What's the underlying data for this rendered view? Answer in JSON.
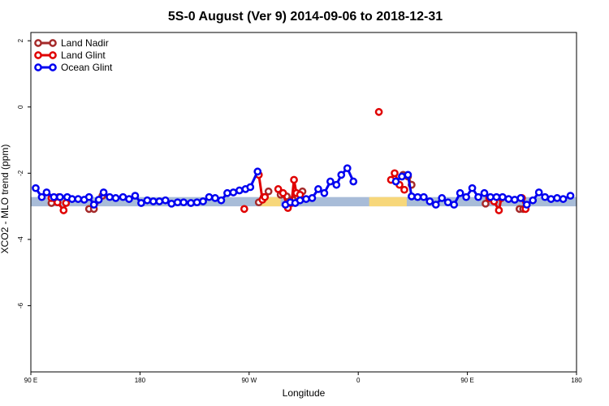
{
  "chart_data": {
    "type": "line",
    "title": "5S-0 August (Ver 9)   2014-09-06 to 2018-12-31",
    "xlabel": "Longitude",
    "ylabel": "XCO2 - MLO trend (ppm)",
    "x_ticks": [
      {
        "value": 90,
        "label": "90 E"
      },
      {
        "value": 180,
        "label": "180"
      },
      {
        "value": 270,
        "label": "90 W"
      },
      {
        "value": 360,
        "label": "0"
      },
      {
        "value": 450,
        "label": "90 E"
      },
      {
        "value": 540,
        "label": "180"
      }
    ],
    "y_ticks": [
      {
        "value": 2,
        "label": "2"
      },
      {
        "value": 0,
        "label": "0"
      },
      {
        "value": -2,
        "label": "-2"
      },
      {
        "value": -4,
        "label": "-4"
      },
      {
        "value": -6,
        "label": "-6"
      }
    ],
    "xlim": [
      90,
      540
    ],
    "ylim": [
      -8,
      2.25
    ],
    "legend_position": "top-left",
    "reference_band": {
      "ymin": -3.0,
      "ymax": -2.72,
      "color": "#a8bcd8",
      "highlight_color": "#f7d77a",
      "highlights": [
        [
          279,
          296
        ],
        [
          369,
          400
        ]
      ]
    },
    "series": [
      {
        "name": "Land Nadir",
        "color": "#a52a2a",
        "segments": [
          [
            [
              107,
              -2.9
            ],
            [
              113,
              -2.72
            ]
          ],
          [
            [
              138,
              -3.08
            ],
            [
              142,
              -3.08
            ],
            [
              149,
              -2.68
            ]
          ],
          [
            [
              278,
              -2.88
            ],
            [
              282,
              -2.72
            ],
            [
              286,
              -2.55
            ]
          ],
          [
            [
              296,
              -2.65
            ],
            [
              301,
              -2.7
            ],
            [
              306,
              -2.8
            ],
            [
              310,
              -2.7
            ],
            [
              314,
              -2.55
            ]
          ],
          [
            [
              397,
              -2.05
            ],
            [
              401,
              -2.1
            ],
            [
              404,
              -2.35
            ]
          ],
          [
            [
              465,
              -2.92
            ],
            [
              470,
              -2.75
            ]
          ],
          [
            [
              493,
              -3.08
            ],
            [
              496,
              -3.08
            ]
          ]
        ]
      },
      {
        "name": "Land Glint",
        "color": "#e00000",
        "segments": [
          [
            [
              107,
              -2.75
            ],
            [
              112,
              -2.88
            ],
            [
              117,
              -3.12
            ],
            [
              119,
              -2.9
            ]
          ],
          [
            [
              266,
              -3.08
            ]
          ],
          [
            [
              278,
              -2.05
            ],
            [
              281,
              -2.8
            ],
            [
              283,
              -2.72
            ]
          ],
          [
            [
              294,
              -2.48
            ],
            [
              298,
              -2.6
            ],
            [
              302,
              -3.05
            ],
            [
              305,
              -2.9
            ],
            [
              307,
              -2.2
            ],
            [
              309,
              -2.6
            ],
            [
              312,
              -2.65
            ]
          ],
          [
            [
              377,
              -0.15
            ]
          ],
          [
            [
              387,
              -2.2
            ],
            [
              390,
              -2.0
            ],
            [
              394,
              -2.35
            ],
            [
              398,
              -2.5
            ]
          ],
          [
            [
              468,
              -2.75
            ],
            [
              472,
              -2.85
            ],
            [
              476,
              -3.12
            ],
            [
              478,
              -2.75
            ]
          ],
          [
            [
              495,
              -2.75
            ],
            [
              498,
              -3.08
            ]
          ]
        ]
      },
      {
        "name": "Ocean Glint",
        "color": "#0000f0",
        "segments": [
          [
            [
              94,
              -2.45
            ],
            [
              99,
              -2.72
            ],
            [
              103,
              -2.58
            ],
            [
              109,
              -2.72
            ],
            [
              114,
              -2.72
            ],
            [
              120,
              -2.72
            ],
            [
              124,
              -2.78
            ],
            [
              129,
              -2.78
            ],
            [
              134,
              -2.8
            ],
            [
              138,
              -2.72
            ],
            [
              142,
              -2.95
            ],
            [
              146,
              -2.8
            ],
            [
              150,
              -2.58
            ],
            [
              155,
              -2.72
            ],
            [
              160,
              -2.75
            ],
            [
              166,
              -2.72
            ],
            [
              171,
              -2.78
            ],
            [
              176,
              -2.68
            ],
            [
              181,
              -2.9
            ],
            [
              186,
              -2.82
            ],
            [
              191,
              -2.85
            ],
            [
              196,
              -2.85
            ],
            [
              201,
              -2.82
            ],
            [
              206,
              -2.92
            ],
            [
              211,
              -2.88
            ],
            [
              216,
              -2.88
            ],
            [
              222,
              -2.9
            ],
            [
              227,
              -2.88
            ],
            [
              232,
              -2.85
            ],
            [
              237,
              -2.72
            ],
            [
              242,
              -2.75
            ],
            [
              247,
              -2.82
            ],
            [
              252,
              -2.6
            ],
            [
              257,
              -2.58
            ],
            [
              262,
              -2.52
            ],
            [
              267,
              -2.48
            ],
            [
              271,
              -2.42
            ],
            [
              277,
              -1.95
            ]
          ],
          [
            [
              300,
              -2.95
            ],
            [
              304,
              -2.88
            ],
            [
              308,
              -2.9
            ],
            [
              312,
              -2.82
            ],
            [
              317,
              -2.78
            ],
            [
              322,
              -2.75
            ],
            [
              327,
              -2.48
            ],
            [
              332,
              -2.6
            ],
            [
              337,
              -2.25
            ],
            [
              342,
              -2.35
            ],
            [
              346,
              -2.05
            ],
            [
              351,
              -1.85
            ],
            [
              356,
              -2.25
            ]
          ],
          [
            [
              391,
              -2.25
            ],
            [
              396,
              -2.1
            ],
            [
              401,
              -2.05
            ],
            [
              404,
              -2.7
            ],
            [
              409,
              -2.72
            ],
            [
              414,
              -2.72
            ],
            [
              419,
              -2.85
            ],
            [
              424,
              -2.95
            ],
            [
              429,
              -2.75
            ],
            [
              434,
              -2.88
            ],
            [
              439,
              -2.95
            ],
            [
              444,
              -2.6
            ],
            [
              449,
              -2.72
            ],
            [
              454,
              -2.45
            ],
            [
              459,
              -2.72
            ],
            [
              464,
              -2.6
            ],
            [
              469,
              -2.72
            ],
            [
              474,
              -2.72
            ],
            [
              479,
              -2.72
            ],
            [
              484,
              -2.78
            ],
            [
              489,
              -2.8
            ],
            [
              494,
              -2.75
            ],
            [
              499,
              -2.95
            ],
            [
              504,
              -2.82
            ],
            [
              509,
              -2.58
            ],
            [
              514,
              -2.72
            ],
            [
              519,
              -2.78
            ],
            [
              524,
              -2.75
            ],
            [
              529,
              -2.78
            ],
            [
              535,
              -2.68
            ]
          ]
        ]
      }
    ]
  }
}
